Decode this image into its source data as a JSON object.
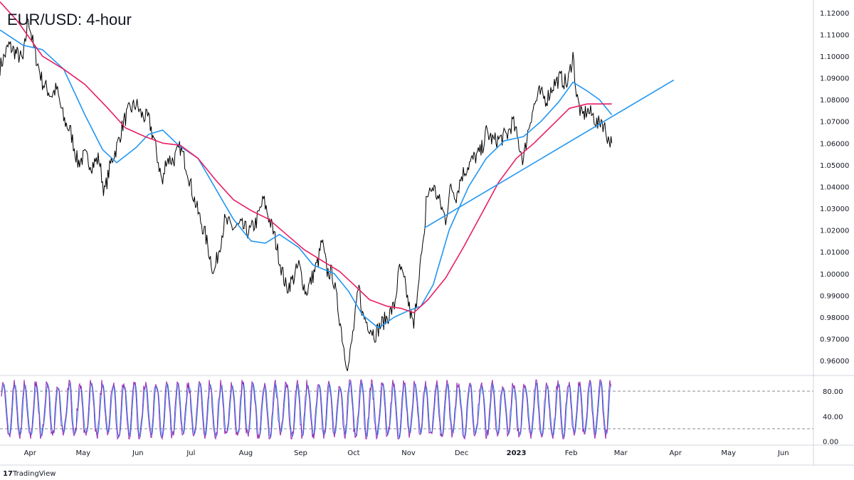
{
  "chart_data": {
    "type": "line",
    "title": "EUR/USD: 4-hour",
    "price_panel": {
      "ylim": [
        0.9535,
        1.1245
      ],
      "y_ticks": [
        "1.12000",
        "1.11000",
        "1.10000",
        "1.09000",
        "1.08000",
        "1.07000",
        "1.06000",
        "1.05000",
        "1.04000",
        "1.03000",
        "1.02000",
        "1.01000",
        "1.00000",
        "0.99000",
        "0.98000",
        "0.97000",
        "0.96000"
      ],
      "price_series": {
        "name": "",
        "color": "#000000",
        "points": [
          [
            "2022-03-15",
            1.095
          ],
          [
            "2022-03-20",
            1.105
          ],
          [
            "2022-03-28",
            1.098
          ],
          [
            "2022-03-31",
            1.118
          ],
          [
            "2022-04-03",
            1.104
          ],
          [
            "2022-04-08",
            1.088
          ],
          [
            "2022-04-13",
            1.082
          ],
          [
            "2022-04-16",
            1.085
          ],
          [
            "2022-04-20",
            1.071
          ],
          [
            "2022-04-24",
            1.065
          ],
          [
            "2022-04-28",
            1.051
          ],
          [
            "2022-05-02",
            1.054
          ],
          [
            "2022-05-06",
            1.05
          ],
          [
            "2022-05-10",
            1.053
          ],
          [
            "2022-05-13",
            1.037
          ],
          [
            "2022-05-17",
            1.052
          ],
          [
            "2022-05-20",
            1.058
          ],
          [
            "2022-05-24",
            1.07
          ],
          [
            "2022-05-27",
            1.075
          ],
          [
            "2022-05-31",
            1.078
          ],
          [
            "2022-06-03",
            1.073
          ],
          [
            "2022-06-07",
            1.071
          ],
          [
            "2022-06-10",
            1.062
          ],
          [
            "2022-06-15",
            1.041
          ],
          [
            "2022-06-17",
            1.053
          ],
          [
            "2022-06-21",
            1.052
          ],
          [
            "2022-06-25",
            1.058
          ],
          [
            "2022-06-29",
            1.048
          ],
          [
            "2022-07-01",
            1.04
          ],
          [
            "2022-07-05",
            1.028
          ],
          [
            "2022-07-09",
            1.018
          ],
          [
            "2022-07-14",
            1.0
          ],
          [
            "2022-07-16",
            1.008
          ],
          [
            "2022-07-20",
            1.024
          ],
          [
            "2022-07-25",
            1.021
          ],
          [
            "2022-07-29",
            1.022
          ],
          [
            "2022-08-03",
            1.019
          ],
          [
            "2022-08-07",
            1.024
          ],
          [
            "2022-08-11",
            1.034
          ],
          [
            "2022-08-14",
            1.026
          ],
          [
            "2022-08-17",
            1.018
          ],
          [
            "2022-08-21",
            1.003
          ],
          [
            "2022-08-24",
            0.993
          ],
          [
            "2022-08-28",
            0.998
          ],
          [
            "2022-08-31",
            1.004
          ],
          [
            "2022-09-04",
            0.991
          ],
          [
            "2022-09-07",
            0.997
          ],
          [
            "2022-09-11",
            1.006
          ],
          [
            "2022-09-13",
            1.015
          ],
          [
            "2022-09-16",
            1.001
          ],
          [
            "2022-09-19",
            1.0
          ],
          [
            "2022-09-23",
            0.98
          ],
          [
            "2022-09-26",
            0.963
          ],
          [
            "2022-09-28",
            0.957
          ],
          [
            "2022-10-01",
            0.975
          ],
          [
            "2022-10-04",
            0.994
          ],
          [
            "2022-10-06",
            0.981
          ],
          [
            "2022-10-09",
            0.977
          ],
          [
            "2022-10-13",
            0.972
          ],
          [
            "2022-10-16",
            0.976
          ],
          [
            "2022-10-20",
            0.98
          ],
          [
            "2022-10-24",
            0.985
          ],
          [
            "2022-10-27",
            1.003
          ],
          [
            "2022-10-30",
            0.995
          ],
          [
            "2022-11-02",
            0.982
          ],
          [
            "2022-11-04",
            0.975
          ],
          [
            "2022-11-07",
            1.001
          ],
          [
            "2022-11-10",
            1.016
          ],
          [
            "2022-11-11",
            1.035
          ],
          [
            "2022-11-15",
            1.04
          ],
          [
            "2022-11-19",
            1.032
          ],
          [
            "2022-11-22",
            1.025
          ],
          [
            "2022-11-25",
            1.04
          ],
          [
            "2022-11-28",
            1.036
          ],
          [
            "2022-12-01",
            1.045
          ],
          [
            "2022-12-05",
            1.05
          ],
          [
            "2022-12-08",
            1.053
          ],
          [
            "2022-12-12",
            1.056
          ],
          [
            "2022-12-15",
            1.065
          ],
          [
            "2022-12-19",
            1.061
          ],
          [
            "2022-12-23",
            1.062
          ],
          [
            "2022-12-27",
            1.064
          ],
          [
            "2022-12-30",
            1.07
          ],
          [
            "2023-01-03",
            1.058
          ],
          [
            "2023-01-05",
            1.052
          ],
          [
            "2023-01-07",
            1.063
          ],
          [
            "2023-01-10",
            1.075
          ],
          [
            "2023-01-14",
            1.083
          ],
          [
            "2023-01-18",
            1.08
          ],
          [
            "2023-01-22",
            1.087
          ],
          [
            "2023-01-26",
            1.09
          ],
          [
            "2023-01-30",
            1.087
          ],
          [
            "2023-02-02",
            1.101
          ],
          [
            "2023-02-04",
            1.082
          ],
          [
            "2023-02-07",
            1.072
          ],
          [
            "2023-02-10",
            1.075
          ],
          [
            "2023-02-14",
            1.072
          ],
          [
            "2023-02-16",
            1.068
          ],
          [
            "2023-02-18",
            1.071
          ],
          [
            "2023-02-20",
            1.067
          ],
          [
            "2023-02-22",
            1.062
          ],
          [
            "2023-02-24",
            1.06
          ]
        ]
      },
      "ma_fast": {
        "name": "",
        "color": "#2196F3",
        "points": [
          [
            "2022-03-15",
            1.112
          ],
          [
            "2022-03-28",
            1.105
          ],
          [
            "2022-04-08",
            1.103
          ],
          [
            "2022-04-20",
            1.094
          ],
          [
            "2022-05-02",
            1.073
          ],
          [
            "2022-05-12",
            1.057
          ],
          [
            "2022-05-20",
            1.051
          ],
          [
            "2022-05-31",
            1.058
          ],
          [
            "2022-06-07",
            1.064
          ],
          [
            "2022-06-15",
            1.066
          ],
          [
            "2022-06-24",
            1.059
          ],
          [
            "2022-07-05",
            1.053
          ],
          [
            "2022-07-15",
            1.039
          ],
          [
            "2022-07-25",
            1.025
          ],
          [
            "2022-08-04",
            1.015
          ],
          [
            "2022-08-12",
            1.014
          ],
          [
            "2022-08-20",
            1.018
          ],
          [
            "2022-08-31",
            1.012
          ],
          [
            "2022-09-08",
            1.004
          ],
          [
            "2022-09-20",
            1.0
          ],
          [
            "2022-09-28",
            0.992
          ],
          [
            "2022-10-06",
            0.981
          ],
          [
            "2022-10-15",
            0.975
          ],
          [
            "2022-10-24",
            0.98
          ],
          [
            "2022-11-01",
            0.983
          ],
          [
            "2022-11-08",
            0.985
          ],
          [
            "2022-11-15",
            0.995
          ],
          [
            "2022-11-24",
            1.02
          ],
          [
            "2022-12-05",
            1.04
          ],
          [
            "2022-12-15",
            1.053
          ],
          [
            "2022-12-25",
            1.061
          ],
          [
            "2023-01-05",
            1.063
          ],
          [
            "2023-01-15",
            1.07
          ],
          [
            "2023-01-25",
            1.079
          ],
          [
            "2023-02-02",
            1.088
          ],
          [
            "2023-02-10",
            1.084
          ],
          [
            "2023-02-17",
            1.08
          ],
          [
            "2023-02-24",
            1.073
          ]
        ]
      },
      "ma_slow": {
        "name": "",
        "color": "#E91E63",
        "points": [
          [
            "2022-03-15",
            1.125
          ],
          [
            "2022-03-25",
            1.116
          ],
          [
            "2022-04-08",
            1.1
          ],
          [
            "2022-04-20",
            1.094
          ],
          [
            "2022-05-02",
            1.087
          ],
          [
            "2022-05-15",
            1.076
          ],
          [
            "2022-05-25",
            1.067
          ],
          [
            "2022-06-05",
            1.063
          ],
          [
            "2022-06-15",
            1.06
          ],
          [
            "2022-06-25",
            1.059
          ],
          [
            "2022-07-05",
            1.053
          ],
          [
            "2022-07-15",
            1.043
          ],
          [
            "2022-07-25",
            1.034
          ],
          [
            "2022-08-04",
            1.029
          ],
          [
            "2022-08-14",
            1.025
          ],
          [
            "2022-08-24",
            1.018
          ],
          [
            "2022-09-03",
            1.011
          ],
          [
            "2022-09-13",
            1.006
          ],
          [
            "2022-09-23",
            1.001
          ],
          [
            "2022-10-01",
            0.995
          ],
          [
            "2022-10-10",
            0.988
          ],
          [
            "2022-10-20",
            0.985
          ],
          [
            "2022-10-28",
            0.984
          ],
          [
            "2022-11-04",
            0.982
          ],
          [
            "2022-11-12",
            0.988
          ],
          [
            "2022-11-22",
            0.998
          ],
          [
            "2022-12-02",
            1.012
          ],
          [
            "2022-12-12",
            1.027
          ],
          [
            "2022-12-22",
            1.042
          ],
          [
            "2023-01-01",
            1.053
          ],
          [
            "2023-01-11",
            1.06
          ],
          [
            "2023-01-21",
            1.068
          ],
          [
            "2023-01-31",
            1.076
          ],
          [
            "2023-02-10",
            1.078
          ],
          [
            "2023-02-17",
            1.078
          ],
          [
            "2023-02-24",
            1.078
          ]
        ]
      },
      "trendline": {
        "color": "#2196F3",
        "points": [
          [
            "2022-11-10",
            1.021
          ],
          [
            "2023-03-31",
            1.089
          ]
        ]
      }
    },
    "oscillator_panel": {
      "ylim": [
        -5,
        105
      ],
      "y_ticks": [
        "80.00",
        "40.00",
        "0.00"
      ],
      "levels": [
        80,
        20
      ],
      "line_color": "#9C27B0",
      "signal_color": "#2196F3"
    },
    "x_axis": {
      "labels": [
        {
          "text": "Apr",
          "date": "2022-04-01"
        },
        {
          "text": "May",
          "date": "2022-05-01"
        },
        {
          "text": "Jun",
          "date": "2022-06-01"
        },
        {
          "text": "Jul",
          "date": "2022-07-01"
        },
        {
          "text": "Aug",
          "date": "2022-08-01"
        },
        {
          "text": "Sep",
          "date": "2022-09-01"
        },
        {
          "text": "Oct",
          "date": "2022-10-01"
        },
        {
          "text": "Nov",
          "date": "2022-11-01"
        },
        {
          "text": "Dec",
          "date": "2022-12-01"
        },
        {
          "text": "2023",
          "date": "2023-01-01",
          "bold": true
        },
        {
          "text": "Feb",
          "date": "2023-02-01"
        },
        {
          "text": "Mar",
          "date": "2023-03-01"
        },
        {
          "text": "Apr",
          "date": "2023-04-01"
        },
        {
          "text": "May",
          "date": "2023-05-01"
        },
        {
          "text": "Jun",
          "date": "2023-06-01"
        }
      ],
      "start_date": "2022-03-15",
      "end_date": "2023-06-18"
    },
    "grid": false
  },
  "footer": {
    "brand_logo": "tradingview-logo",
    "brand_text": "TradingView"
  }
}
